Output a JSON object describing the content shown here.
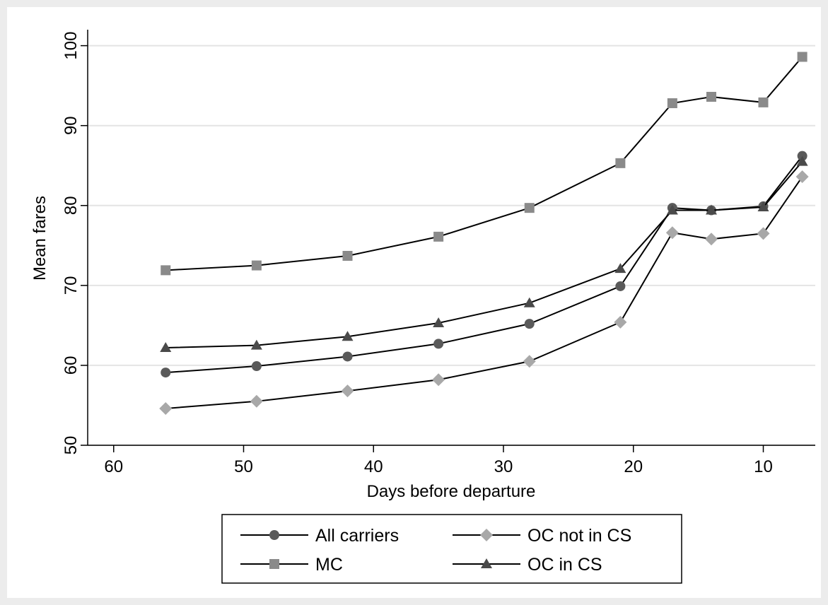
{
  "chart_data": {
    "type": "line",
    "xlabel": "Days before departure",
    "ylabel": "Mean fares",
    "xlim": [
      62,
      6
    ],
    "ylim": [
      50,
      102
    ],
    "x_reversed": true,
    "xticks": [
      60,
      50,
      40,
      30,
      20,
      10
    ],
    "yticks": [
      50,
      60,
      70,
      80,
      90,
      100
    ],
    "grid": "horizontal",
    "legend_position": "bottom",
    "x": [
      56,
      49,
      42,
      35,
      28,
      21,
      17,
      14,
      10,
      7
    ],
    "series": [
      {
        "name": "All carriers",
        "marker": "circle",
        "color": "#5a5a5a",
        "values": [
          59.1,
          59.9,
          61.1,
          62.7,
          65.2,
          69.9,
          79.7,
          79.4,
          79.9,
          86.2
        ]
      },
      {
        "name": "OC not in CS",
        "marker": "diamond",
        "color": "#a8a8a8",
        "values": [
          54.6,
          55.5,
          56.8,
          58.2,
          60.5,
          65.4,
          76.6,
          75.8,
          76.5,
          83.6
        ]
      },
      {
        "name": "MC",
        "marker": "square",
        "color": "#8a8a8a",
        "values": [
          71.9,
          72.5,
          73.7,
          76.1,
          79.7,
          85.3,
          92.8,
          93.6,
          92.9,
          98.6
        ]
      },
      {
        "name": "OC in CS",
        "marker": "triangle",
        "color": "#4a4a4a",
        "values": [
          62.2,
          62.5,
          63.6,
          65.3,
          67.8,
          72.1,
          79.4,
          79.4,
          79.8,
          85.5
        ]
      }
    ]
  }
}
